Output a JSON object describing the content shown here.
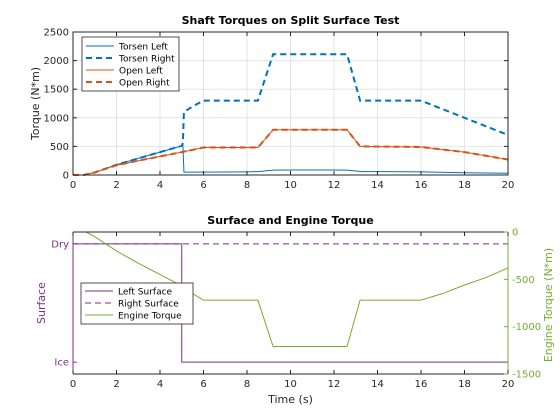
{
  "chart_data": [
    {
      "type": "line",
      "title": "Shaft Torques on Split Surface Test",
      "xlabel": "",
      "ylabel": "Torque (N*m)",
      "xlim": [
        0,
        20
      ],
      "ylim": [
        0,
        2500
      ],
      "x_ticks": [
        0,
        2,
        4,
        6,
        8,
        10,
        12,
        14,
        16,
        18,
        20
      ],
      "y_ticks": [
        0,
        500,
        1000,
        1500,
        2000,
        2500
      ],
      "grid": true,
      "legend": "top-left",
      "series": [
        {
          "name": "Torsen Left",
          "color": "#0072bd",
          "style": "solid",
          "points": [
            [
              0,
              0
            ],
            [
              0.5,
              0
            ],
            [
              1,
              45
            ],
            [
              2,
              180
            ],
            [
              3,
              290
            ],
            [
              4,
              400
            ],
            [
              5,
              510
            ],
            [
              5.05,
              560
            ],
            [
              5.1,
              50
            ],
            [
              6,
              50
            ],
            [
              8,
              55
            ],
            [
              8.5,
              60
            ],
            [
              9.2,
              85
            ],
            [
              10,
              88
            ],
            [
              12,
              88
            ],
            [
              12.6,
              85
            ],
            [
              13.3,
              60
            ],
            [
              16,
              55
            ],
            [
              18,
              40
            ],
            [
              20,
              30
            ]
          ]
        },
        {
          "name": "Torsen Right",
          "color": "#0072bd",
          "style": "dashed",
          "points": [
            [
              0,
              0
            ],
            [
              0.5,
              0
            ],
            [
              1,
              45
            ],
            [
              2,
              180
            ],
            [
              3,
              290
            ],
            [
              4,
              400
            ],
            [
              5,
              510
            ],
            [
              5.05,
              560
            ],
            [
              5.1,
              1100
            ],
            [
              5.5,
              1200
            ],
            [
              6,
              1300
            ],
            [
              8.5,
              1300
            ],
            [
              9.2,
              2110
            ],
            [
              12.6,
              2110
            ],
            [
              13.2,
              1300
            ],
            [
              16,
              1300
            ],
            [
              18,
              1000
            ],
            [
              20,
              700
            ]
          ]
        },
        {
          "name": "Open Left",
          "color": "#d95319",
          "style": "solid",
          "points": [
            [
              0,
              0
            ],
            [
              0.5,
              0
            ],
            [
              1,
              45
            ],
            [
              2,
              170
            ],
            [
              3,
              250
            ],
            [
              4,
              325
            ],
            [
              5,
              400
            ],
            [
              5.5,
              440
            ],
            [
              6,
              480
            ],
            [
              8.5,
              480
            ],
            [
              9.2,
              790
            ],
            [
              12.6,
              790
            ],
            [
              13.2,
              500
            ],
            [
              16,
              490
            ],
            [
              18,
              400
            ],
            [
              20,
              270
            ]
          ]
        },
        {
          "name": "Open Right",
          "color": "#d95319",
          "style": "dashed",
          "points": [
            [
              0,
              0
            ],
            [
              0.5,
              0
            ],
            [
              1,
              45
            ],
            [
              2,
              170
            ],
            [
              3,
              250
            ],
            [
              4,
              325
            ],
            [
              5,
              400
            ],
            [
              5.5,
              440
            ],
            [
              6,
              480
            ],
            [
              8.5,
              480
            ],
            [
              9.2,
              790
            ],
            [
              12.6,
              790
            ],
            [
              13.2,
              500
            ],
            [
              16,
              490
            ],
            [
              18,
              400
            ],
            [
              20,
              270
            ]
          ]
        }
      ]
    },
    {
      "type": "line",
      "title": "Surface and Engine Torque",
      "xlabel": "Time (s)",
      "ylabel_left": "Surface",
      "ylabel_right": "Engine Torque (N*m)",
      "xlim": [
        0,
        20
      ],
      "x_ticks": [
        0,
        2,
        4,
        6,
        8,
        10,
        12,
        14,
        16,
        18,
        20
      ],
      "left_categories": [
        "Ice",
        "Dry"
      ],
      "ylim_left": [
        -0.1,
        1.1
      ],
      "ylim_right": [
        -1500,
        0
      ],
      "right_ticks": [
        0,
        -500,
        -1000,
        -1500
      ],
      "grid": false,
      "legend": "middle-left",
      "left_color": "#7e2f8e",
      "right_color": "#77ac30",
      "series": [
        {
          "name": "Left Surface",
          "axis": "left",
          "color": "#7e2f8e",
          "style": "solid",
          "points": [
            [
              0,
              1
            ],
            [
              5,
              1
            ],
            [
              5,
              0
            ],
            [
              20,
              0
            ]
          ]
        },
        {
          "name": "Right Surface",
          "axis": "left",
          "color": "#7e2f8e",
          "style": "dashed",
          "points": [
            [
              0,
              1
            ],
            [
              20,
              1
            ]
          ]
        },
        {
          "name": "Engine Torque",
          "axis": "right",
          "color": "#77ac30",
          "style": "solid",
          "points": [
            [
              0,
              0
            ],
            [
              0.6,
              0
            ],
            [
              1,
              -50
            ],
            [
              2,
              -200
            ],
            [
              3,
              -330
            ],
            [
              4,
              -450
            ],
            [
              5,
              -570
            ],
            [
              5.5,
              -650
            ],
            [
              6,
              -720
            ],
            [
              8.5,
              -720
            ],
            [
              9.2,
              -1210
            ],
            [
              12.6,
              -1210
            ],
            [
              13.2,
              -720
            ],
            [
              16,
              -720
            ],
            [
              17,
              -650
            ],
            [
              18,
              -560
            ],
            [
              19,
              -480
            ],
            [
              20,
              -380
            ]
          ]
        }
      ]
    }
  ]
}
